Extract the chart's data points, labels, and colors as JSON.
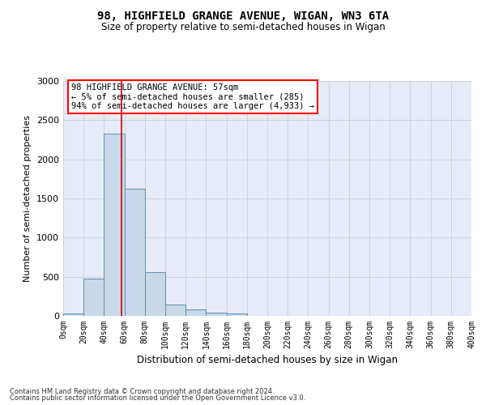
{
  "title1": "98, HIGHFIELD GRANGE AVENUE, WIGAN, WN3 6TA",
  "title2": "Size of property relative to semi-detached houses in Wigan",
  "xlabel": "Distribution of semi-detached houses by size in Wigan",
  "ylabel": "Number of semi-detached properties",
  "footer1": "Contains HM Land Registry data © Crown copyright and database right 2024.",
  "footer2": "Contains public sector information licensed under the Open Government Licence v3.0.",
  "annotation_line1": "98 HIGHFIELD GRANGE AVENUE: 57sqm",
  "annotation_line2": "← 5% of semi-detached houses are smaller (285)",
  "annotation_line3": "94% of semi-detached houses are larger (4,933) →",
  "property_size": 57,
  "bar_edges": [
    0,
    20,
    40,
    60,
    80,
    100,
    120,
    140,
    160,
    180,
    200,
    220,
    240,
    260,
    280,
    300,
    320,
    340,
    360,
    380,
    400
  ],
  "bar_values": [
    30,
    480,
    2330,
    1620,
    560,
    150,
    80,
    45,
    30,
    0,
    0,
    0,
    0,
    0,
    0,
    0,
    0,
    0,
    0,
    0
  ],
  "bar_color": "#c8d8e8",
  "bar_edge_color": "#5b8db0",
  "vline_color": "#cc0000",
  "vline_x": 57,
  "ylim": [
    0,
    3000
  ],
  "xlim": [
    0,
    400
  ],
  "yticks": [
    0,
    500,
    1000,
    1500,
    2000,
    2500,
    3000
  ],
  "xtick_labels": [
    "0sqm",
    "20sqm",
    "40sqm",
    "60sqm",
    "80sqm",
    "100sqm",
    "120sqm",
    "140sqm",
    "160sqm",
    "180sqm",
    "200sqm",
    "220sqm",
    "240sqm",
    "260sqm",
    "280sqm",
    "300sqm",
    "320sqm",
    "340sqm",
    "360sqm",
    "380sqm",
    "400sqm"
  ],
  "grid_color": "#c8cce0",
  "background_color": "#e8ecf8"
}
